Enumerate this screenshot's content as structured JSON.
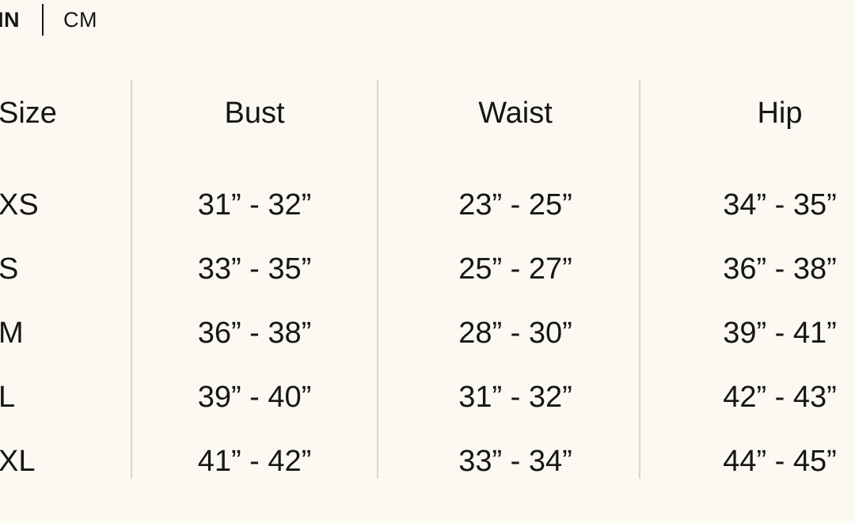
{
  "unit_toggle": {
    "in_label": "IN",
    "cm_label": "CM",
    "selected": "IN"
  },
  "table": {
    "headers": {
      "size": "Size",
      "bust": "Bust",
      "waist": "Waist",
      "hip": "Hip"
    },
    "rows": [
      {
        "size": "XS",
        "bust": "31” - 32”",
        "waist": "23” - 25”",
        "hip": "34” - 35”"
      },
      {
        "size": "S",
        "bust": "33” - 35”",
        "waist": "25” - 27”",
        "hip": "36” - 38”"
      },
      {
        "size": "M",
        "bust": "36” - 38”",
        "waist": "28” - 30”",
        "hip": "39” - 41”"
      },
      {
        "size": "L",
        "bust": "39” - 40”",
        "waist": "31” - 32”",
        "hip": "42” - 43”"
      },
      {
        "size": "XL",
        "bust": "41” - 42”",
        "waist": "33” - 34”",
        "hip": "44” - 45”"
      }
    ]
  },
  "colors": {
    "background": "#FBF9F2",
    "text": "#161616",
    "divider": "#D9D6CF",
    "toggle_separator": "#161616"
  }
}
